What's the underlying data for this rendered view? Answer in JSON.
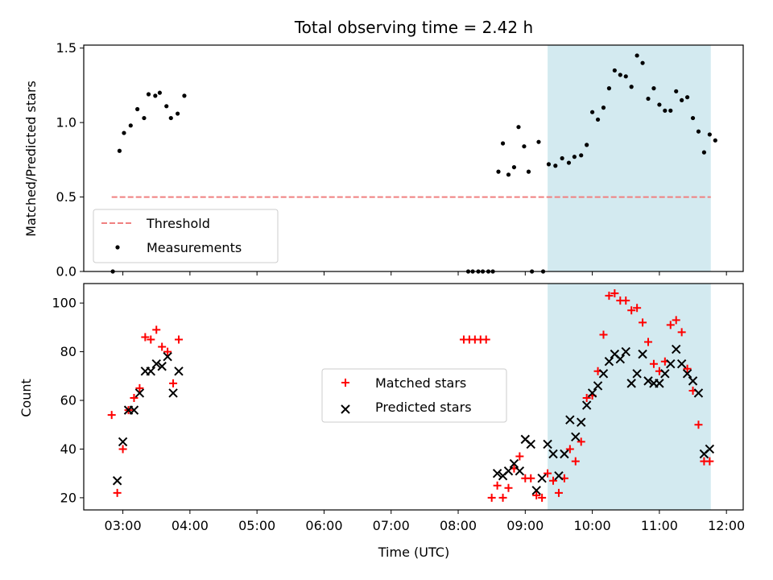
{
  "chart_data": [
    {
      "type": "scatter",
      "title": "Total observing time = 2.42 h",
      "xlabel": "",
      "ylabel": "Matched/Predicted stars",
      "x_unit": "time (UTC)",
      "xlim": [
        "02:25",
        "12:15"
      ],
      "ylim": [
        0,
        1.52
      ],
      "yticks": [
        "0.0",
        "0.5",
        "1.0",
        "1.5"
      ],
      "highlight_span": [
        "09:20",
        "11:46"
      ],
      "highlight_color": "#d3eaf0",
      "legend_position": "lower-left",
      "threshold": {
        "name": "Threshold",
        "y": 0.5,
        "x_range": [
          "02:50",
          "11:46"
        ],
        "color": "#f08080",
        "style": "dashed"
      },
      "series": [
        {
          "name": "Measurements",
          "color": "#000000",
          "marker": "dot",
          "points": [
            [
              "02:51",
              0.0
            ],
            [
              "02:57",
              0.81
            ],
            [
              "03:01",
              0.93
            ],
            [
              "03:07",
              0.98
            ],
            [
              "03:13",
              1.09
            ],
            [
              "03:19",
              1.03
            ],
            [
              "03:23",
              1.19
            ],
            [
              "03:29",
              1.18
            ],
            [
              "03:33",
              1.2
            ],
            [
              "03:39",
              1.11
            ],
            [
              "03:43",
              1.03
            ],
            [
              "03:49",
              1.06
            ],
            [
              "03:55",
              1.18
            ],
            [
              "08:09",
              0.0
            ],
            [
              "08:13",
              0.0
            ],
            [
              "08:18",
              0.0
            ],
            [
              "08:22",
              0.0
            ],
            [
              "08:27",
              0.0
            ],
            [
              "08:31",
              0.0
            ],
            [
              "08:36",
              0.67
            ],
            [
              "08:40",
              0.86
            ],
            [
              "08:45",
              0.65
            ],
            [
              "08:50",
              0.7
            ],
            [
              "08:54",
              0.97
            ],
            [
              "08:59",
              0.84
            ],
            [
              "09:03",
              0.67
            ],
            [
              "09:06",
              0.0
            ],
            [
              "09:12",
              0.87
            ],
            [
              "09:16",
              0.0
            ],
            [
              "09:21",
              0.72
            ],
            [
              "09:27",
              0.71
            ],
            [
              "09:33",
              0.76
            ],
            [
              "09:39",
              0.73
            ],
            [
              "09:44",
              0.77
            ],
            [
              "09:50",
              0.78
            ],
            [
              "09:55",
              0.85
            ],
            [
              "10:00",
              1.07
            ],
            [
              "10:05",
              1.02
            ],
            [
              "10:10",
              1.1
            ],
            [
              "10:15",
              1.23
            ],
            [
              "10:20",
              1.35
            ],
            [
              "10:25",
              1.32
            ],
            [
              "10:30",
              1.31
            ],
            [
              "10:35",
              1.24
            ],
            [
              "10:40",
              1.45
            ],
            [
              "10:45",
              1.4
            ],
            [
              "10:50",
              1.16
            ],
            [
              "10:55",
              1.23
            ],
            [
              "11:00",
              1.12
            ],
            [
              "11:05",
              1.08
            ],
            [
              "11:10",
              1.08
            ],
            [
              "11:15",
              1.21
            ],
            [
              "11:20",
              1.15
            ],
            [
              "11:25",
              1.17
            ],
            [
              "11:30",
              1.03
            ],
            [
              "11:35",
              0.94
            ],
            [
              "11:40",
              0.8
            ],
            [
              "11:45",
              0.92
            ],
            [
              "11:50",
              0.88
            ]
          ]
        }
      ]
    },
    {
      "type": "scatter",
      "title": "",
      "xlabel": "Time (UTC)",
      "ylabel": "Count",
      "xlim": [
        "02:25",
        "12:15"
      ],
      "ylim": [
        15,
        108
      ],
      "yticks": [
        "20",
        "40",
        "60",
        "80",
        "100"
      ],
      "xticks": [
        "03:00",
        "04:00",
        "05:00",
        "06:00",
        "07:00",
        "08:00",
        "09:00",
        "10:00",
        "11:00",
        "12:00"
      ],
      "highlight_span": [
        "09:20",
        "11:46"
      ],
      "highlight_color": "#d3eaf0",
      "legend_position": "center",
      "series": [
        {
          "name": "Matched stars",
          "color": "#ff0000",
          "marker": "plus",
          "points": [
            [
              "02:50",
              54
            ],
            [
              "02:55",
              22
            ],
            [
              "03:00",
              40
            ],
            [
              "03:05",
              56
            ],
            [
              "03:10",
              61
            ],
            [
              "03:15",
              65
            ],
            [
              "03:20",
              86
            ],
            [
              "03:25",
              85
            ],
            [
              "03:30",
              89
            ],
            [
              "03:35",
              82
            ],
            [
              "03:40",
              80
            ],
            [
              "03:45",
              67
            ],
            [
              "03:50",
              85
            ],
            [
              "08:05",
              85
            ],
            [
              "08:10",
              85
            ],
            [
              "08:15",
              85
            ],
            [
              "08:20",
              85
            ],
            [
              "08:25",
              85
            ],
            [
              "08:30",
              20
            ],
            [
              "08:35",
              25
            ],
            [
              "08:40",
              20
            ],
            [
              "08:45",
              24
            ],
            [
              "08:50",
              32
            ],
            [
              "08:55",
              37
            ],
            [
              "09:00",
              28
            ],
            [
              "09:05",
              28
            ],
            [
              "09:10",
              21
            ],
            [
              "09:15",
              20
            ],
            [
              "09:20",
              30
            ],
            [
              "09:25",
              27
            ],
            [
              "09:30",
              22
            ],
            [
              "09:35",
              28
            ],
            [
              "09:40",
              40
            ],
            [
              "09:45",
              35
            ],
            [
              "09:50",
              43
            ],
            [
              "09:55",
              61
            ],
            [
              "10:00",
              62
            ],
            [
              "10:05",
              72
            ],
            [
              "10:10",
              87
            ],
            [
              "10:15",
              103
            ],
            [
              "10:20",
              104
            ],
            [
              "10:25",
              101
            ],
            [
              "10:30",
              101
            ],
            [
              "10:35",
              97
            ],
            [
              "10:40",
              98
            ],
            [
              "10:45",
              92
            ],
            [
              "10:50",
              84
            ],
            [
              "10:55",
              75
            ],
            [
              "11:00",
              72
            ],
            [
              "11:05",
              76
            ],
            [
              "11:10",
              91
            ],
            [
              "11:15",
              93
            ],
            [
              "11:20",
              88
            ],
            [
              "11:25",
              73
            ],
            [
              "11:30",
              64
            ],
            [
              "11:35",
              50
            ],
            [
              "11:40",
              35
            ],
            [
              "11:45",
              35
            ]
          ]
        },
        {
          "name": "Predicted stars",
          "color": "#000000",
          "marker": "x",
          "points": [
            [
              "02:55",
              27
            ],
            [
              "03:00",
              43
            ],
            [
              "03:05",
              56
            ],
            [
              "03:10",
              56
            ],
            [
              "03:15",
              63
            ],
            [
              "03:20",
              72
            ],
            [
              "03:25",
              72
            ],
            [
              "03:30",
              75
            ],
            [
              "03:35",
              74
            ],
            [
              "03:40",
              78
            ],
            [
              "03:45",
              63
            ],
            [
              "03:50",
              72
            ],
            [
              "08:35",
              30
            ],
            [
              "08:40",
              29
            ],
            [
              "08:45",
              31
            ],
            [
              "08:50",
              34
            ],
            [
              "08:55",
              31
            ],
            [
              "09:00",
              44
            ],
            [
              "09:05",
              42
            ],
            [
              "09:10",
              23
            ],
            [
              "09:15",
              28
            ],
            [
              "09:20",
              42
            ],
            [
              "09:25",
              38
            ],
            [
              "09:30",
              29
            ],
            [
              "09:35",
              38
            ],
            [
              "09:40",
              52
            ],
            [
              "09:45",
              45
            ],
            [
              "09:50",
              51
            ],
            [
              "09:55",
              58
            ],
            [
              "10:00",
              63
            ],
            [
              "10:05",
              66
            ],
            [
              "10:10",
              71
            ],
            [
              "10:15",
              76
            ],
            [
              "10:20",
              79
            ],
            [
              "10:25",
              77
            ],
            [
              "10:30",
              80
            ],
            [
              "10:35",
              67
            ],
            [
              "10:40",
              71
            ],
            [
              "10:45",
              79
            ],
            [
              "10:50",
              68
            ],
            [
              "10:55",
              67
            ],
            [
              "11:00",
              67
            ],
            [
              "11:05",
              71
            ],
            [
              "11:10",
              75
            ],
            [
              "11:15",
              81
            ],
            [
              "11:20",
              75
            ],
            [
              "11:25",
              71
            ],
            [
              "11:30",
              68
            ],
            [
              "11:35",
              63
            ],
            [
              "11:40",
              38
            ],
            [
              "11:45",
              40
            ]
          ]
        }
      ]
    }
  ]
}
